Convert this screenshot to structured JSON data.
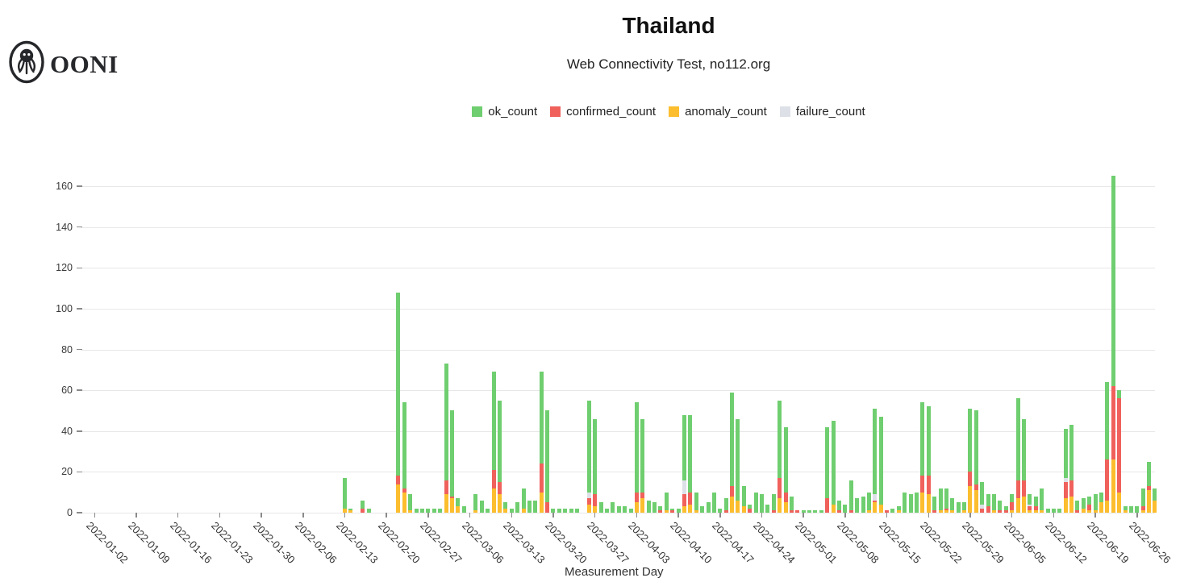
{
  "logo": {
    "text": "OONI"
  },
  "header": {
    "title": "Thailand",
    "subtitle": "Web Connectivity Test, no112.org"
  },
  "legend": [
    {
      "key": "ok",
      "label": "ok_count",
      "color": "#6fce6f"
    },
    {
      "key": "cf",
      "label": "confirmed_count",
      "color": "#f0615c"
    },
    {
      "key": "an",
      "label": "anomaly_count",
      "color": "#fcbe2e"
    },
    {
      "key": "fl",
      "label": "failure_count",
      "color": "#dde1e7"
    }
  ],
  "chart_data": {
    "type": "bar",
    "stacked": true,
    "title": "Thailand",
    "subtitle": "Web Connectivity Test, no112.org",
    "xlabel": "Measurement Day",
    "ylabel": "",
    "ylim": [
      0,
      170
    ],
    "yticks": [
      0,
      20,
      40,
      60,
      80,
      100,
      120,
      140,
      160
    ],
    "grid": true,
    "legend_position": "top",
    "x_start": "2022-01-02",
    "x_tick_labels": [
      "2022-01-02",
      "2022-01-09",
      "2022-01-16",
      "2022-01-23",
      "2022-01-30",
      "2022-02-06",
      "2022-02-13",
      "2022-02-20",
      "2022-02-27",
      "2022-03-06",
      "2022-03-13",
      "2022-03-20",
      "2022-03-27",
      "2022-04-03",
      "2022-04-10",
      "2022-04-17",
      "2022-04-24",
      "2022-05-01",
      "2022-05-08",
      "2022-05-15",
      "2022-05-22",
      "2022-05-29",
      "2022-06-05",
      "2022-06-12",
      "2022-06-19",
      "2022-06-26"
    ],
    "series_labels": {
      "ok": "ok_count",
      "cf": "confirmed_count",
      "an": "anomaly_count",
      "fl": "failure_count"
    },
    "colors": {
      "ok": "#6fce6f",
      "cf": "#f0615c",
      "an": "#fcbe2e",
      "fl": "#dde1e7"
    },
    "stack_order_bottom_to_top": [
      "an",
      "cf",
      "fl",
      "ok"
    ],
    "days": [
      {
        "d": "2022-02-13",
        "ok": 15,
        "an": 2
      },
      {
        "d": "2022-02-14",
        "ok": 1,
        "an": 1
      },
      {
        "d": "2022-02-16",
        "ok": 4,
        "cf": 2
      },
      {
        "d": "2022-02-17",
        "ok": 2
      },
      {
        "d": "2022-02-22",
        "ok": 90,
        "cf": 4,
        "an": 14
      },
      {
        "d": "2022-02-23",
        "ok": 42,
        "cf": 2,
        "an": 10
      },
      {
        "d": "2022-02-24",
        "ok": 8,
        "an": 1
      },
      {
        "d": "2022-02-25",
        "ok": 2
      },
      {
        "d": "2022-02-26",
        "ok": 2
      },
      {
        "d": "2022-02-27",
        "ok": 2
      },
      {
        "d": "2022-02-28",
        "ok": 2
      },
      {
        "d": "2022-03-01",
        "ok": 2
      },
      {
        "d": "2022-03-02",
        "ok": 57,
        "cf": 7,
        "an": 9
      },
      {
        "d": "2022-03-03",
        "ok": 42,
        "cf": 1,
        "an": 7
      },
      {
        "d": "2022-03-04",
        "ok": 4,
        "an": 3
      },
      {
        "d": "2022-03-05",
        "ok": 3
      },
      {
        "d": "2022-03-07",
        "ok": 8,
        "an": 1
      },
      {
        "d": "2022-03-08",
        "ok": 6
      },
      {
        "d": "2022-03-09",
        "ok": 2
      },
      {
        "d": "2022-03-10",
        "ok": 48,
        "cf": 9,
        "an": 12
      },
      {
        "d": "2022-03-11",
        "ok": 40,
        "cf": 6,
        "an": 9
      },
      {
        "d": "2022-03-12",
        "ok": 3,
        "an": 2
      },
      {
        "d": "2022-03-13",
        "ok": 2
      },
      {
        "d": "2022-03-14",
        "ok": 5
      },
      {
        "d": "2022-03-15",
        "ok": 10,
        "an": 2
      },
      {
        "d": "2022-03-16",
        "ok": 6
      },
      {
        "d": "2022-03-17",
        "ok": 6
      },
      {
        "d": "2022-03-18",
        "ok": 45,
        "cf": 14,
        "an": 10
      },
      {
        "d": "2022-03-19",
        "ok": 45,
        "cf": 5
      },
      {
        "d": "2022-03-20",
        "ok": 2
      },
      {
        "d": "2022-03-21",
        "ok": 2
      },
      {
        "d": "2022-03-22",
        "ok": 2
      },
      {
        "d": "2022-03-23",
        "ok": 2
      },
      {
        "d": "2022-03-24",
        "ok": 2
      },
      {
        "d": "2022-03-26",
        "ok": 45,
        "cf": 3,
        "an": 4,
        "fl": 3
      },
      {
        "d": "2022-03-27",
        "ok": 37,
        "cf": 6,
        "an": 3
      },
      {
        "d": "2022-03-28",
        "ok": 5
      },
      {
        "d": "2022-03-29",
        "ok": 2
      },
      {
        "d": "2022-03-30",
        "ok": 5
      },
      {
        "d": "2022-03-31",
        "ok": 3
      },
      {
        "d": "2022-04-01",
        "ok": 3
      },
      {
        "d": "2022-04-02",
        "ok": 2
      },
      {
        "d": "2022-04-03",
        "ok": 44,
        "cf": 5,
        "an": 5
      },
      {
        "d": "2022-04-04",
        "ok": 36,
        "cf": 3,
        "an": 7
      },
      {
        "d": "2022-04-05",
        "ok": 6
      },
      {
        "d": "2022-04-06",
        "ok": 5
      },
      {
        "d": "2022-04-07",
        "ok": 2,
        "cf": 1
      },
      {
        "d": "2022-04-08",
        "ok": 9,
        "an": 1
      },
      {
        "d": "2022-04-09",
        "ok": 1,
        "cf": 1
      },
      {
        "d": "2022-04-10",
        "ok": 2
      },
      {
        "d": "2022-04-11",
        "ok": 32,
        "cf": 6,
        "an": 3,
        "fl": 7
      },
      {
        "d": "2022-04-12",
        "ok": 38,
        "cf": 6,
        "an": 4
      },
      {
        "d": "2022-04-13",
        "ok": 9,
        "an": 1
      },
      {
        "d": "2022-04-14",
        "ok": 3
      },
      {
        "d": "2022-04-15",
        "ok": 5
      },
      {
        "d": "2022-04-16",
        "ok": 10
      },
      {
        "d": "2022-04-17",
        "ok": 2
      },
      {
        "d": "2022-04-18",
        "ok": 6,
        "cf": 1
      },
      {
        "d": "2022-04-19",
        "ok": 46,
        "cf": 5,
        "an": 8
      },
      {
        "d": "2022-04-20",
        "ok": 40,
        "an": 6
      },
      {
        "d": "2022-04-21",
        "ok": 10,
        "an": 3
      },
      {
        "d": "2022-04-22",
        "ok": 2,
        "cf": 2
      },
      {
        "d": "2022-04-23",
        "ok": 10
      },
      {
        "d": "2022-04-24",
        "ok": 9
      },
      {
        "d": "2022-04-25",
        "ok": 4
      },
      {
        "d": "2022-04-26",
        "ok": 8,
        "cf": 1
      },
      {
        "d": "2022-04-27",
        "ok": 38,
        "cf": 10,
        "an": 7
      },
      {
        "d": "2022-04-28",
        "ok": 32,
        "cf": 5,
        "an": 5
      },
      {
        "d": "2022-04-29",
        "ok": 7,
        "cf": 1
      },
      {
        "d": "2022-04-30",
        "cf": 1
      },
      {
        "d": "2022-05-01",
        "ok": 1
      },
      {
        "d": "2022-05-02",
        "ok": 1
      },
      {
        "d": "2022-05-03",
        "ok": 1
      },
      {
        "d": "2022-05-04",
        "ok": 1
      },
      {
        "d": "2022-05-05",
        "ok": 35,
        "cf": 7
      },
      {
        "d": "2022-05-06",
        "ok": 41,
        "an": 4
      },
      {
        "d": "2022-05-07",
        "ok": 5,
        "cf": 1
      },
      {
        "d": "2022-05-08",
        "ok": 4
      },
      {
        "d": "2022-05-09",
        "ok": 15,
        "cf": 1
      },
      {
        "d": "2022-05-10",
        "ok": 7
      },
      {
        "d": "2022-05-11",
        "ok": 8
      },
      {
        "d": "2022-05-12",
        "ok": 9,
        "an": 1
      },
      {
        "d": "2022-05-13",
        "ok": 42,
        "cf": 1,
        "an": 5,
        "fl": 3
      },
      {
        "d": "2022-05-14",
        "ok": 43,
        "an": 4
      },
      {
        "d": "2022-05-15",
        "cf": 1
      },
      {
        "d": "2022-05-16",
        "ok": 2
      },
      {
        "d": "2022-05-17",
        "ok": 2,
        "an": 1
      },
      {
        "d": "2022-05-18",
        "ok": 10
      },
      {
        "d": "2022-05-19",
        "ok": 9
      },
      {
        "d": "2022-05-20",
        "ok": 10
      },
      {
        "d": "2022-05-21",
        "ok": 36,
        "cf": 8,
        "an": 10
      },
      {
        "d": "2022-05-22",
        "ok": 34,
        "cf": 9,
        "an": 9
      },
      {
        "d": "2022-05-23",
        "ok": 7,
        "cf": 1
      },
      {
        "d": "2022-05-24",
        "ok": 11,
        "an": 1
      },
      {
        "d": "2022-05-25",
        "ok": 10,
        "cf": 1,
        "an": 1
      },
      {
        "d": "2022-05-26",
        "ok": 6,
        "an": 1
      },
      {
        "d": "2022-05-27",
        "ok": 5
      },
      {
        "d": "2022-05-28",
        "ok": 4,
        "an": 1
      },
      {
        "d": "2022-05-29",
        "ok": 31,
        "cf": 7,
        "an": 13
      },
      {
        "d": "2022-05-30",
        "ok": 36,
        "cf": 3,
        "an": 11
      },
      {
        "d": "2022-05-31",
        "ok": 11,
        "cf": 2,
        "fl": 2
      },
      {
        "d": "2022-06-01",
        "ok": 6,
        "cf": 3
      },
      {
        "d": "2022-06-02",
        "ok": 8,
        "an": 1
      },
      {
        "d": "2022-06-03",
        "ok": 5,
        "cf": 1
      },
      {
        "d": "2022-06-04",
        "ok": 2,
        "cf": 1
      },
      {
        "d": "2022-06-05",
        "ok": 4,
        "cf": 4,
        "an": 1
      },
      {
        "d": "2022-06-06",
        "ok": 40,
        "cf": 9,
        "an": 7
      },
      {
        "d": "2022-06-07",
        "ok": 30,
        "cf": 8,
        "an": 8
      },
      {
        "d": "2022-06-08",
        "ok": 5,
        "cf": 2,
        "an": 1,
        "fl": 1
      },
      {
        "d": "2022-06-09",
        "ok": 5,
        "cf": 2,
        "an": 1
      },
      {
        "d": "2022-06-10",
        "ok": 11,
        "an": 1
      },
      {
        "d": "2022-06-11",
        "ok": 2
      },
      {
        "d": "2022-06-12",
        "ok": 2
      },
      {
        "d": "2022-06-13",
        "ok": 2
      },
      {
        "d": "2022-06-14",
        "ok": 24,
        "cf": 8,
        "an": 7,
        "fl": 2
      },
      {
        "d": "2022-06-15",
        "ok": 27,
        "cf": 8,
        "an": 8
      },
      {
        "d": "2022-06-16",
        "ok": 5,
        "cf": 1
      },
      {
        "d": "2022-06-17",
        "ok": 5,
        "an": 2
      },
      {
        "d": "2022-06-18",
        "ok": 4,
        "cf": 3,
        "an": 1
      },
      {
        "d": "2022-06-19",
        "ok": 8,
        "an": 1
      },
      {
        "d": "2022-06-20",
        "ok": 5,
        "an": 5
      },
      {
        "d": "2022-06-21",
        "ok": 38,
        "cf": 20,
        "an": 6
      },
      {
        "d": "2022-06-22",
        "ok": 103,
        "cf": 36,
        "an": 26
      },
      {
        "d": "2022-06-23",
        "ok": 4,
        "cf": 46,
        "an": 10
      },
      {
        "d": "2022-06-24",
        "ok": 2,
        "an": 1
      },
      {
        "d": "2022-06-25",
        "ok": 3
      },
      {
        "d": "2022-06-26",
        "ok": 3
      },
      {
        "d": "2022-06-27",
        "ok": 9,
        "cf": 2,
        "an": 1
      },
      {
        "d": "2022-06-28",
        "ok": 12,
        "cf": 2,
        "an": 11
      },
      {
        "d": "2022-06-29",
        "ok": 6,
        "an": 6
      }
    ]
  }
}
